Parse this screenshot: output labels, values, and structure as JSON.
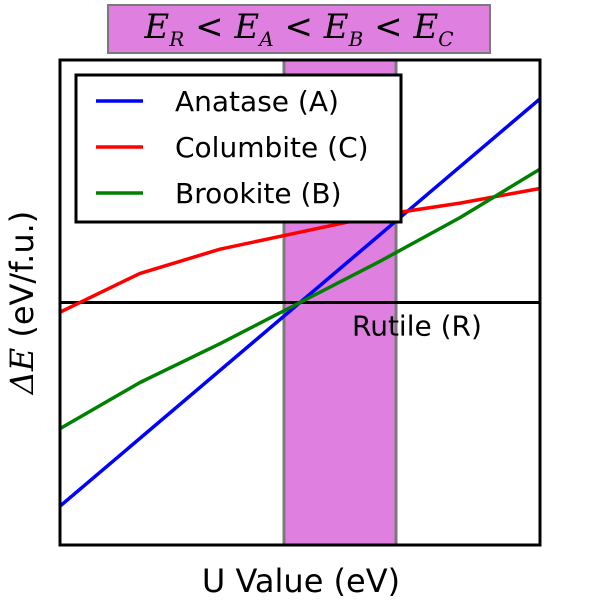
{
  "chart_data": {
    "type": "line",
    "title": {
      "terms": [
        {
          "sym": "E",
          "sub": "R"
        },
        {
          "sym": "E",
          "sub": "A"
        },
        {
          "sym": "E",
          "sub": "B"
        },
        {
          "sym": "E",
          "sub": "C"
        }
      ],
      "relation": "<",
      "highlight_color": "#df7fdf"
    },
    "xlabel": "U Value (eV)",
    "ylabel_symbol": "ΔE",
    "ylabel_unit": "(eV/f.u.)",
    "xlim": [
      0,
      6
    ],
    "ylim": [
      -1.0,
      1.0
    ],
    "ticks_shown": false,
    "grid": false,
    "legend_position": "upper-left",
    "highlight_band": {
      "x_range": [
        2.8,
        4.2
      ],
      "color": "#df7fdf"
    },
    "reference_line": {
      "y": 0,
      "label": "Rutile (R)",
      "color": "#000000"
    },
    "series": [
      {
        "name": "Anatase (A)",
        "color": "#0000ff",
        "x": [
          0,
          6
        ],
        "y": [
          -0.84,
          0.84
        ]
      },
      {
        "name": "Columbite (C)",
        "color": "#ff0000",
        "x": [
          0,
          1,
          2,
          3,
          4,
          5,
          6
        ],
        "y": [
          -0.04,
          0.12,
          0.22,
          0.29,
          0.36,
          0.41,
          0.47
        ]
      },
      {
        "name": "Brookite (B)",
        "color": "#008000",
        "x": [
          0,
          1,
          2,
          3,
          4,
          5,
          6
        ],
        "y": [
          -0.52,
          -0.33,
          -0.17,
          0.0,
          0.17,
          0.35,
          0.55
        ]
      }
    ]
  }
}
